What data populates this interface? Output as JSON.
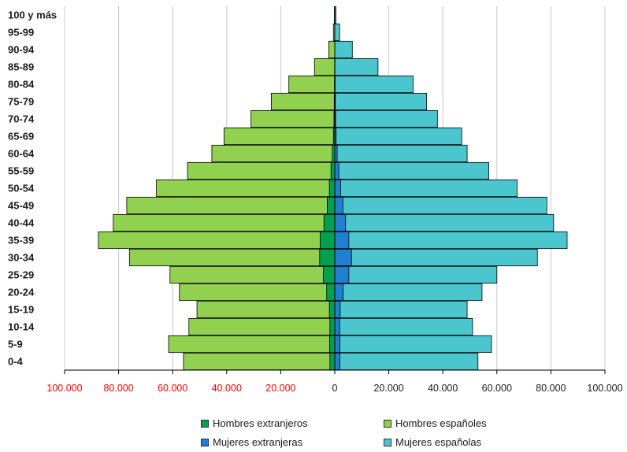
{
  "chart_data": {
    "type": "bar",
    "orientation": "horizontal",
    "title": "",
    "xlabel": "",
    "ylabel": "",
    "xlim": [
      -100000,
      100000
    ],
    "grid": true,
    "legend_position": "bottom",
    "categories": [
      "0-4",
      "5-9",
      "10-14",
      "15-19",
      "20-24",
      "25-29",
      "30-34",
      "35-39",
      "40-44",
      "45-49",
      "50-54",
      "55-59",
      "60-64",
      "65-69",
      "70-74",
      "75-79",
      "80-84",
      "85-89",
      "90-94",
      "95-99",
      "100 y más"
    ],
    "x_tick_labels": [
      "100.000",
      "80.000",
      "60.000",
      "40.000",
      "20.000",
      "0",
      "20.000",
      "40.000",
      "60.000",
      "80.000",
      "100.000"
    ],
    "x_tick_values": [
      -100000,
      -80000,
      -60000,
      -40000,
      -20000,
      0,
      20000,
      40000,
      60000,
      80000,
      100000
    ],
    "series": [
      {
        "name": "Hombres españoles",
        "side": "left",
        "color": "#92d050",
        "values": [
          56000,
          61500,
          54000,
          51000,
          57500,
          61000,
          76000,
          87500,
          82000,
          77000,
          66000,
          54500,
          45500,
          41000,
          31000,
          23500,
          17000,
          7500,
          2200,
          500,
          150
        ]
      },
      {
        "name": "Hombres extranjeros",
        "side": "left",
        "color": "#00a050",
        "values": [
          1800,
          1900,
          1800,
          2000,
          3000,
          4200,
          5600,
          5400,
          4000,
          2800,
          2000,
          1400,
          900,
          500,
          300,
          200,
          120,
          60,
          30,
          10,
          5
        ]
      },
      {
        "name": "Mujeres españolas",
        "side": "right",
        "color": "#4bc6cf",
        "values": [
          53000,
          58000,
          51000,
          49000,
          54500,
          60000,
          75000,
          86000,
          81000,
          78500,
          67500,
          57000,
          49000,
          47000,
          38000,
          34000,
          29000,
          16000,
          6500,
          1800,
          400
        ]
      },
      {
        "name": "Mujeres extranjeras",
        "side": "right",
        "color": "#1f7fd1",
        "values": [
          1900,
          1900,
          1800,
          2000,
          3100,
          5200,
          6200,
          5200,
          4000,
          3000,
          2200,
          1500,
          900,
          500,
          300,
          200,
          120,
          60,
          30,
          10,
          5
        ]
      }
    ]
  },
  "legend": {
    "hombres_extranjeros": "Hombres extranjeros",
    "hombres_espanoles": "Hombres españoles",
    "mujeres_extranjeras": "Mujeres extranjeras",
    "mujeres_espanolas": "Mujeres españolas"
  },
  "colors": {
    "negative_tick": "#ff0000",
    "positive_tick": "#1a1a1a",
    "gridline": "#c8c8c8"
  }
}
